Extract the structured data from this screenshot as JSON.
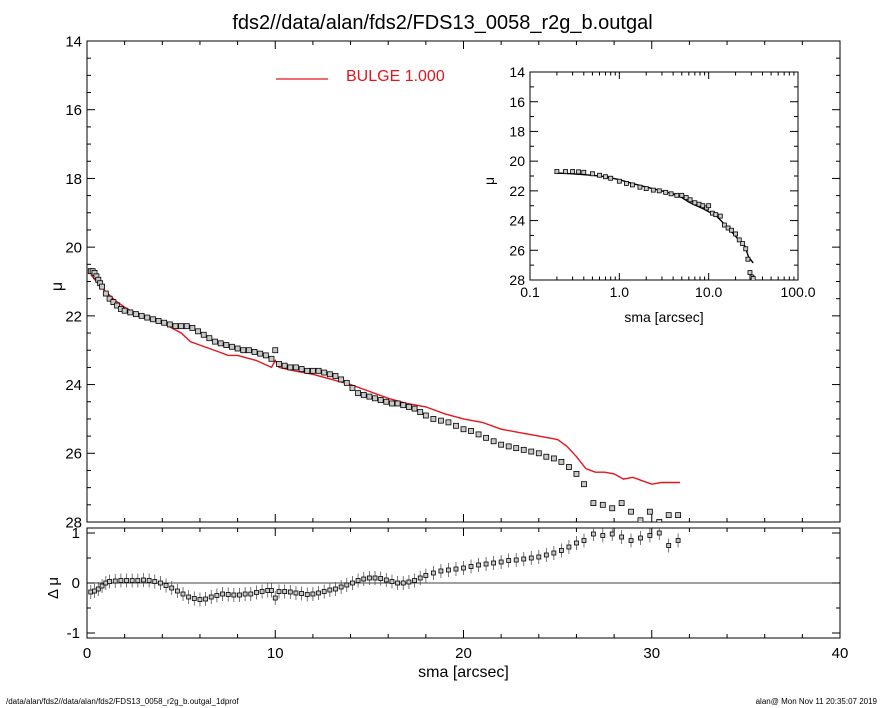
{
  "title": "fds2//data/alan/fds2/FDS13_0058_r2g_b.outgal",
  "footer": {
    "left": "/data/alan/fds2//data/alan/fds2/FDS13_0058_r2g_b.outgal_1dprof",
    "right": "alan@  Mon Nov 11 20:35:07 2019"
  },
  "colors": {
    "model": "#e8141c",
    "data": "#000000",
    "marker_fill": "#c9c9c9"
  },
  "chart_data": [
    {
      "type": "scatter",
      "panel": "main",
      "xlabel": "sma [arcsec]",
      "ylabel": "μ",
      "xlim": [
        0,
        40
      ],
      "ylim": [
        28,
        14
      ],
      "xticks": [
        "0",
        "10",
        "20",
        "30",
        "40"
      ],
      "yticks": [
        "14",
        "16",
        "18",
        "20",
        "22",
        "24",
        "26",
        "28"
      ],
      "legend": {
        "label": "BULGE  1.000",
        "placement": "top-center"
      },
      "series": [
        {
          "name": "BULGE  1.000",
          "kind": "line",
          "x": [
            0.2,
            0.5,
            1.0,
            1.5,
            2.0,
            2.5,
            3.0,
            3.5,
            4.0,
            4.5,
            5.0,
            5.5,
            6.0,
            7.0,
            7.5,
            8.0,
            9.0,
            9.8,
            10.0,
            10.2,
            11.0,
            12.0,
            13.0,
            14.0,
            15.0,
            16.0,
            17.0,
            18.0,
            19.0,
            20.0,
            21.0,
            22.0,
            23.0,
            24.0,
            25.0,
            25.5,
            26.0,
            26.5,
            27.0,
            27.5,
            28.0,
            28.5,
            29.0,
            29.5,
            30.0,
            30.5,
            31.5
          ],
          "y": [
            20.8,
            21.0,
            21.3,
            21.55,
            21.75,
            21.9,
            22.0,
            22.1,
            22.2,
            22.35,
            22.5,
            22.75,
            22.85,
            23.05,
            23.15,
            23.15,
            23.3,
            23.5,
            23.3,
            23.5,
            23.6,
            23.7,
            23.85,
            24.0,
            24.2,
            24.4,
            24.55,
            24.65,
            24.85,
            25.0,
            25.1,
            25.3,
            25.4,
            25.5,
            25.6,
            25.8,
            26.1,
            26.45,
            26.55,
            26.55,
            26.6,
            26.75,
            26.7,
            26.8,
            26.9,
            26.85,
            26.85
          ]
        },
        {
          "name": "",
          "kind": "points",
          "x": [
            0.2,
            0.3,
            0.4,
            0.5,
            0.6,
            0.7,
            0.8,
            1.0,
            1.2,
            1.4,
            1.6,
            1.8,
            2.0,
            2.3,
            2.6,
            2.9,
            3.2,
            3.5,
            3.8,
            4.1,
            4.4,
            4.7,
            5.0,
            5.3,
            5.6,
            5.9,
            6.2,
            6.5,
            6.8,
            7.1,
            7.4,
            7.7,
            8.0,
            8.3,
            8.6,
            8.9,
            9.2,
            9.5,
            9.8,
            10.0,
            10.2,
            10.5,
            10.8,
            11.1,
            11.4,
            11.7,
            12.0,
            12.3,
            12.6,
            12.9,
            13.2,
            13.5,
            13.8,
            14.1,
            14.4,
            14.7,
            15.0,
            15.3,
            15.6,
            15.9,
            16.2,
            16.5,
            16.8,
            17.1,
            17.4,
            17.7,
            18.0,
            18.4,
            18.8,
            19.2,
            19.6,
            20.0,
            20.4,
            20.8,
            21.2,
            21.6,
            22.0,
            22.4,
            22.8,
            23.2,
            23.6,
            24.0,
            24.4,
            24.8,
            25.2,
            25.6,
            26.0,
            26.4,
            26.9,
            27.4,
            27.9,
            28.4,
            28.9,
            29.4,
            29.9,
            30.4,
            30.9,
            31.4
          ],
          "y": [
            20.7,
            20.7,
            20.75,
            20.85,
            20.95,
            21.05,
            21.15,
            21.35,
            21.5,
            21.6,
            21.7,
            21.8,
            21.85,
            21.9,
            21.95,
            22.0,
            22.05,
            22.1,
            22.15,
            22.2,
            22.25,
            22.3,
            22.3,
            22.3,
            22.35,
            22.45,
            22.55,
            22.65,
            22.75,
            22.8,
            22.85,
            22.9,
            22.95,
            23.0,
            23.0,
            23.05,
            23.1,
            23.15,
            23.25,
            23.0,
            23.4,
            23.45,
            23.5,
            23.5,
            23.55,
            23.6,
            23.6,
            23.6,
            23.65,
            23.7,
            23.75,
            23.85,
            23.95,
            24.1,
            24.25,
            24.3,
            24.35,
            24.4,
            24.45,
            24.5,
            24.55,
            24.55,
            24.6,
            24.65,
            24.7,
            24.8,
            24.9,
            25.0,
            25.05,
            25.1,
            25.2,
            25.3,
            25.35,
            25.45,
            25.55,
            25.65,
            25.75,
            25.8,
            25.85,
            25.9,
            25.95,
            26.0,
            26.1,
            26.15,
            26.25,
            26.4,
            26.6,
            26.9,
            27.45,
            27.5,
            27.6,
            27.45,
            27.7,
            27.95,
            27.7,
            28.0,
            27.8,
            27.8
          ]
        }
      ]
    },
    {
      "type": "scatter",
      "panel": "inset",
      "xlabel": "sma [arcsec]",
      "ylabel": "μ",
      "xscale": "log",
      "xlim": [
        0.1,
        100
      ],
      "ylim": [
        28,
        14
      ],
      "xticks": [
        "0.1",
        "1.0",
        "10.0",
        "100.0"
      ],
      "yticks": [
        "14",
        "16",
        "18",
        "20",
        "22",
        "24",
        "26",
        "28"
      ],
      "series": [
        {
          "name": "",
          "kind": "line",
          "x": [
            0.2,
            0.3,
            0.5,
            0.7,
            1.0,
            1.5,
            2.0,
            3.0,
            4.0,
            5.0,
            6.0,
            7.0,
            8.0,
            9.0,
            10.0,
            12.0,
            14.0,
            16.0,
            18.0,
            20.0,
            22.0,
            25.0,
            28.0,
            31.5
          ],
          "y": [
            20.8,
            20.85,
            20.95,
            21.05,
            21.25,
            21.55,
            21.75,
            22.0,
            22.2,
            22.45,
            22.75,
            22.95,
            23.1,
            23.25,
            23.4,
            23.65,
            24.05,
            24.45,
            24.75,
            25.05,
            25.35,
            25.6,
            26.45,
            26.85
          ]
        },
        {
          "name": "",
          "kind": "points",
          "x": [
            0.2,
            0.25,
            0.3,
            0.35,
            0.4,
            0.5,
            0.6,
            0.7,
            0.8,
            1.0,
            1.2,
            1.4,
            1.7,
            2.0,
            2.4,
            2.8,
            3.3,
            3.8,
            4.4,
            5.0,
            5.6,
            6.2,
            7.0,
            7.8,
            8.6,
            9.5,
            10.0,
            11.0,
            12.0,
            13.5,
            15.0,
            16.5,
            18.0,
            20.0,
            22.0,
            24.0,
            26.0,
            27.5,
            29.0,
            30.5,
            31.5
          ],
          "y": [
            20.7,
            20.7,
            20.7,
            20.72,
            20.75,
            20.85,
            20.95,
            21.05,
            21.15,
            21.35,
            21.5,
            21.6,
            21.75,
            21.85,
            21.95,
            22.0,
            22.1,
            22.2,
            22.3,
            22.3,
            22.45,
            22.6,
            22.8,
            22.9,
            23.0,
            23.15,
            23.0,
            23.5,
            23.6,
            23.7,
            24.3,
            24.5,
            24.65,
            24.9,
            25.3,
            25.55,
            25.9,
            26.6,
            27.5,
            27.8,
            27.9
          ]
        }
      ]
    },
    {
      "type": "scatter",
      "panel": "residual",
      "xlabel": "sma [arcsec]",
      "ylabel": "Δ μ",
      "xlim": [
        0,
        40
      ],
      "ylim": [
        -1.1,
        1.1
      ],
      "xticks": [
        "0",
        "10",
        "20",
        "30",
        "40"
      ],
      "yticks": [
        "1",
        "0",
        "-1"
      ],
      "reference_line": 0,
      "series": [
        {
          "name": "",
          "kind": "points",
          "x": [
            0.2,
            0.4,
            0.6,
            0.8,
            1.0,
            1.2,
            1.5,
            1.8,
            2.1,
            2.4,
            2.7,
            3.0,
            3.3,
            3.6,
            3.9,
            4.2,
            4.5,
            4.8,
            5.1,
            5.4,
            5.7,
            6.0,
            6.3,
            6.6,
            6.9,
            7.2,
            7.5,
            7.8,
            8.1,
            8.4,
            8.7,
            9.0,
            9.3,
            9.6,
            9.8,
            10.0,
            10.2,
            10.5,
            10.8,
            11.1,
            11.4,
            11.7,
            12.0,
            12.3,
            12.6,
            12.9,
            13.2,
            13.5,
            13.8,
            14.1,
            14.4,
            14.7,
            15.0,
            15.3,
            15.6,
            15.9,
            16.2,
            16.5,
            16.8,
            17.1,
            17.4,
            17.7,
            18.0,
            18.4,
            18.8,
            19.2,
            19.6,
            20.0,
            20.4,
            20.8,
            21.2,
            21.6,
            22.0,
            22.4,
            22.8,
            23.2,
            23.6,
            24.0,
            24.4,
            24.8,
            25.2,
            25.6,
            26.0,
            26.4,
            26.9,
            27.4,
            27.9,
            28.4,
            28.9,
            29.4,
            29.9,
            30.4,
            30.9,
            31.4
          ],
          "y": [
            -0.18,
            -0.16,
            -0.12,
            -0.06,
            0.0,
            0.03,
            0.04,
            0.05,
            0.05,
            0.05,
            0.05,
            0.06,
            0.05,
            0.03,
            0.0,
            -0.05,
            -0.1,
            -0.16,
            -0.22,
            -0.28,
            -0.31,
            -0.33,
            -0.32,
            -0.28,
            -0.25,
            -0.22,
            -0.23,
            -0.24,
            -0.24,
            -0.22,
            -0.22,
            -0.19,
            -0.17,
            -0.15,
            -0.15,
            -0.3,
            -0.17,
            -0.17,
            -0.18,
            -0.2,
            -0.21,
            -0.23,
            -0.22,
            -0.2,
            -0.17,
            -0.14,
            -0.12,
            -0.08,
            -0.04,
            0.0,
            0.05,
            0.08,
            0.1,
            0.1,
            0.09,
            0.06,
            0.03,
            0.0,
            0.0,
            0.02,
            0.05,
            0.1,
            0.15,
            0.2,
            0.24,
            0.26,
            0.28,
            0.3,
            0.33,
            0.36,
            0.38,
            0.4,
            0.42,
            0.45,
            0.46,
            0.48,
            0.5,
            0.52,
            0.56,
            0.6,
            0.65,
            0.72,
            0.8,
            0.85,
            0.98,
            0.95,
            0.98,
            0.92,
            0.85,
            0.9,
            0.95,
            1.0,
            0.75,
            0.85
          ]
        }
      ]
    }
  ]
}
